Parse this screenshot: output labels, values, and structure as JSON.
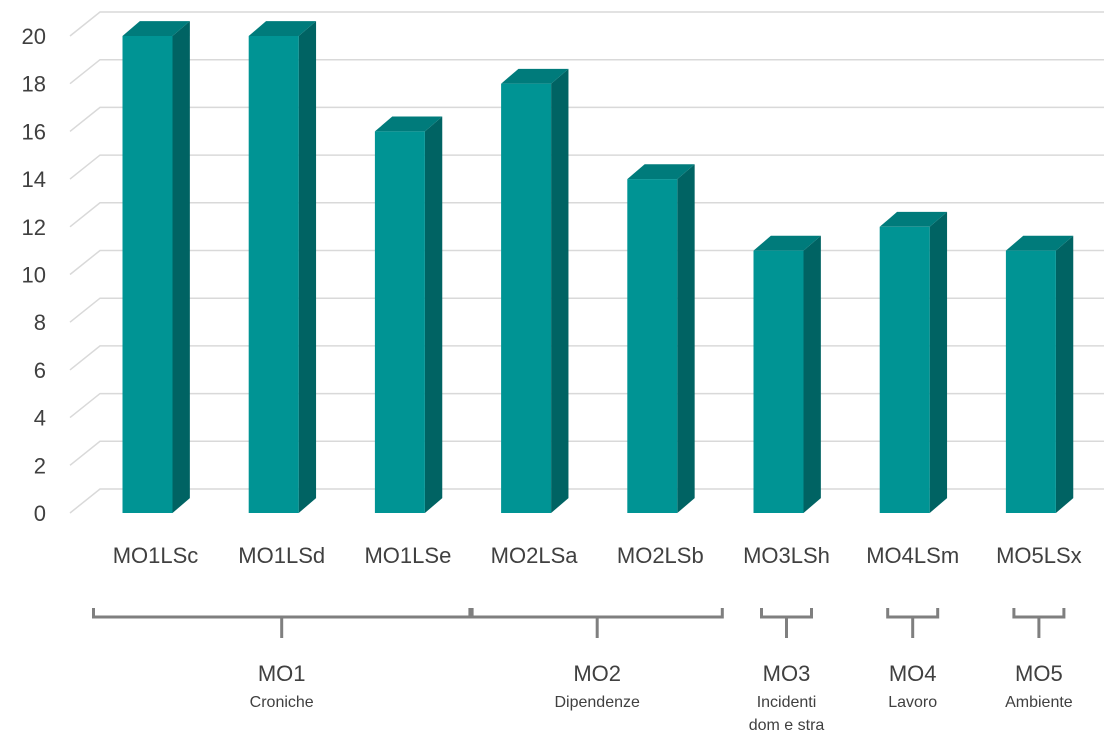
{
  "chart_data": {
    "type": "bar",
    "style": "3d-column",
    "categories": [
      "MO1LSc",
      "MO1LSd",
      "MO1LSe",
      "MO2LSa",
      "MO2LSb",
      "MO3LSh",
      "MO4LSm",
      "MO5LSx"
    ],
    "series": [
      {
        "values": [
          20,
          20,
          16,
          18,
          14,
          11,
          12,
          11
        ]
      }
    ],
    "ylim": [
      0,
      20
    ],
    "yticks": [
      0,
      2,
      4,
      6,
      8,
      10,
      12,
      14,
      16,
      18,
      20
    ],
    "grid": true,
    "legend": "none",
    "colors": {
      "front": "#009494",
      "top": "#007b7b",
      "side": "#006363",
      "grid": "#d9d9d9",
      "bracket": "#7f7f7f",
      "text": "#404040"
    },
    "groups": [
      {
        "title": "MO1",
        "subtitle": [
          "Croniche"
        ],
        "from": 0,
        "to": 2
      },
      {
        "title": "MO2",
        "subtitle": [
          "Dipendenze"
        ],
        "from": 3,
        "to": 4
      },
      {
        "title": "MO3",
        "subtitle": [
          "Incidenti",
          "dom e stra"
        ],
        "from": 5,
        "to": 5
      },
      {
        "title": "MO4",
        "subtitle": [
          "Lavoro"
        ],
        "from": 6,
        "to": 6
      },
      {
        "title": "MO5",
        "subtitle": [
          "Ambiente"
        ],
        "from": 7,
        "to": 7
      }
    ]
  }
}
